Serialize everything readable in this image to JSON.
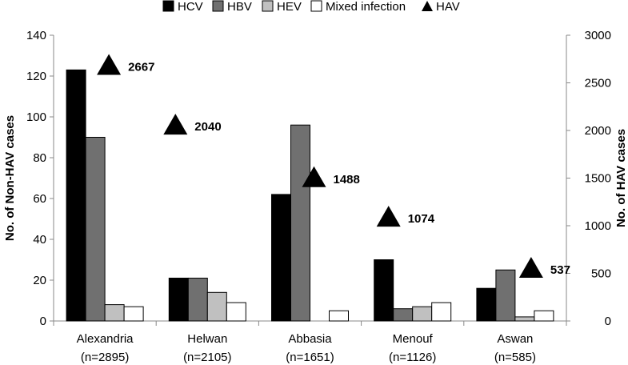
{
  "chart_data": {
    "type": "bar",
    "categories": [
      {
        "name": "Alexandria",
        "n": "(n=2895)"
      },
      {
        "name": "Helwan",
        "n": "(n=2105)"
      },
      {
        "name": "Abbasia",
        "n": "(n=1651)"
      },
      {
        "name": "Menouf",
        "n": "(n=1126)"
      },
      {
        "name": "Aswan",
        "n": "(n=585)"
      }
    ],
    "series": [
      {
        "name": "HCV",
        "color": "#000000",
        "values": [
          123,
          21,
          62,
          30,
          16
        ]
      },
      {
        "name": "HBV",
        "color": "#707070",
        "values": [
          90,
          21,
          96,
          6,
          25
        ]
      },
      {
        "name": "HEV",
        "color": "#c0c0c0",
        "values": [
          8,
          14,
          0,
          7,
          2
        ]
      },
      {
        "name": "Mixed infection",
        "color": "#ffffff",
        "values": [
          7,
          9,
          5,
          9,
          5
        ]
      }
    ],
    "overlay_series": {
      "name": "HAV",
      "marker": "triangle",
      "axis": "right",
      "values": [
        2667,
        2040,
        1488,
        1074,
        537
      ],
      "labels": [
        "2667",
        "2040",
        "1488",
        "1074",
        "537"
      ]
    },
    "ylabel": "No. of Non-HAV cases",
    "y2label": "No. of HAV cases",
    "ylim": [
      0,
      140
    ],
    "y2lim": [
      0,
      3000
    ],
    "yticks": [
      "0",
      "20",
      "40",
      "60",
      "80",
      "100",
      "120",
      "140"
    ],
    "y2ticks": [
      "0",
      "500",
      "1000",
      "1500",
      "2000",
      "2500",
      "3000"
    ],
    "legend_position": "top",
    "grid": false
  }
}
